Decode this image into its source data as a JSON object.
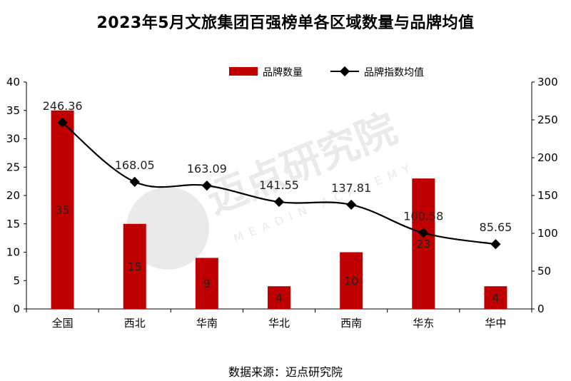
{
  "title": "2023年5月文旅集团百强榜单各区域数量与品牌均值",
  "source": "数据来源：迈点研究院",
  "watermark": {
    "cn": "迈点研究院",
    "en": "MEADIN ACADEMY"
  },
  "chart_data": {
    "type": "bar+line",
    "categories": [
      "全国",
      "西北",
      "华南",
      "华北",
      "西南",
      "华东",
      "华中"
    ],
    "series": [
      {
        "name": "品牌数量",
        "type": "bar",
        "axis": "left",
        "color": "#c00000",
        "values": [
          35,
          15,
          9,
          4,
          10,
          23,
          4
        ]
      },
      {
        "name": "品牌指数均值",
        "type": "line",
        "axis": "right",
        "color": "#000000",
        "values": [
          246.36,
          168.05,
          163.09,
          141.55,
          137.81,
          100.58,
          85.65
        ]
      }
    ],
    "y_left": {
      "min": 0,
      "max": 40,
      "ticks": [
        0,
        5,
        10,
        15,
        20,
        25,
        30,
        35,
        40
      ]
    },
    "y_right": {
      "min": 0,
      "max": 300,
      "ticks": [
        0,
        50,
        100,
        150,
        200,
        250,
        300
      ]
    },
    "legend_position": "top-right",
    "grid": false
  }
}
